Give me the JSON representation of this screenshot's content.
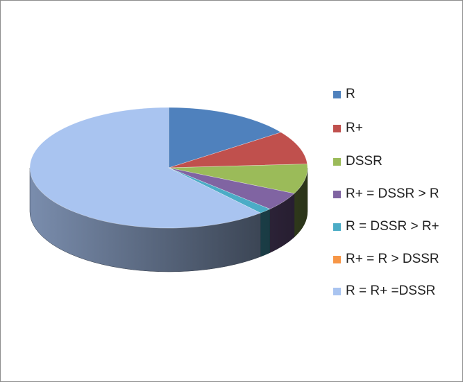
{
  "chart_data": {
    "type": "pie",
    "style": "3d",
    "title": "",
    "legend_position": "right",
    "series": [
      {
        "name": "R",
        "value": 15,
        "color": "#4f81bd"
      },
      {
        "name": "R+",
        "value": 9,
        "color": "#c0504d"
      },
      {
        "name": "DSSR",
        "value": 8,
        "color": "#9bbb59"
      },
      {
        "name": "R+ = DSSR > R",
        "value": 5,
        "color": "#8064a2"
      },
      {
        "name": "R = DSSR > R+",
        "value": 1.5,
        "color": "#4bacc6"
      },
      {
        "name": "R+ = R > DSSR",
        "value": 0,
        "color": "#f79646"
      },
      {
        "name": "R = R+ =DSSR",
        "value": 61.5,
        "color": "#a9c4f0"
      }
    ]
  }
}
